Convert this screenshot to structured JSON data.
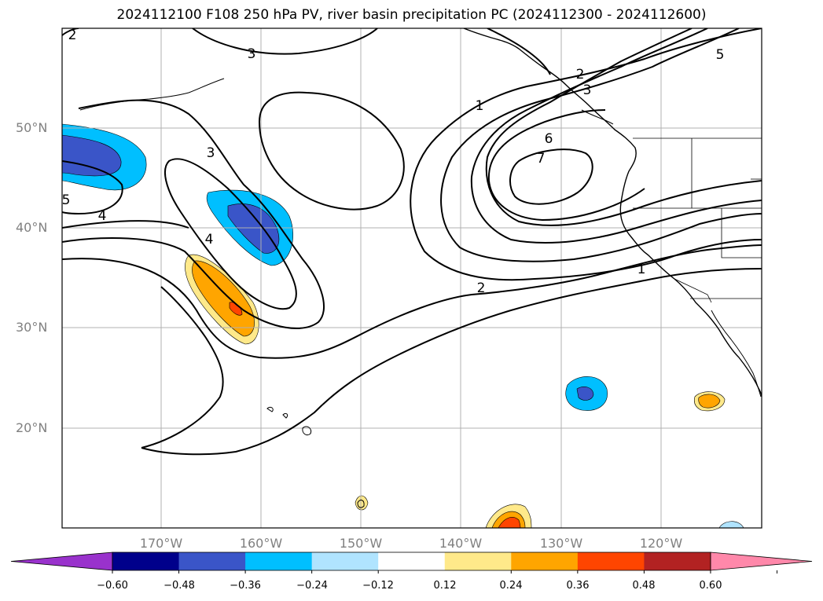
{
  "title": "2024112100 F108 250 hPa PV, river basin precipitation PC (2024112300 - 2024112600)",
  "map": {
    "projection": "Plate Carree",
    "lon_range": [
      -180,
      -110
    ],
    "lat_range": [
      10,
      60
    ],
    "lat_ticks": [
      "50°N",
      "40°N",
      "30°N",
      "20°N"
    ],
    "lon_ticks": [
      "170°W",
      "160°W",
      "150°W",
      "140°W",
      "130°W",
      "120°W"
    ],
    "contour_labels": [
      "2",
      "3",
      "3",
      "4",
      "4",
      "5",
      "1",
      "2",
      "3",
      "5",
      "6",
      "7",
      "2",
      "1"
    ],
    "colors": {
      "neg_strong": "#3a55c8",
      "neg_mid": "#00bfff",
      "neg_light": "#b0e4ff",
      "pos_light": "#ffe98a",
      "pos_mid": "#ffa500",
      "pos_strong": "#ff4500",
      "coast": "#000000",
      "grid": "#b0b0b0"
    }
  },
  "colorbar": {
    "labels": [
      "−0.60",
      "−0.48",
      "−0.36",
      "−0.24",
      "−0.12",
      "0.12",
      "0.24",
      "0.36",
      "0.48",
      "0.60"
    ],
    "colors": [
      "#9932cc",
      "#00008b",
      "#3a55c8",
      "#00bfff",
      "#b0e4ff",
      "#ffffff",
      "#ffe98a",
      "#ffa500",
      "#ff4500",
      "#b22222",
      "#ff88aa"
    ]
  }
}
